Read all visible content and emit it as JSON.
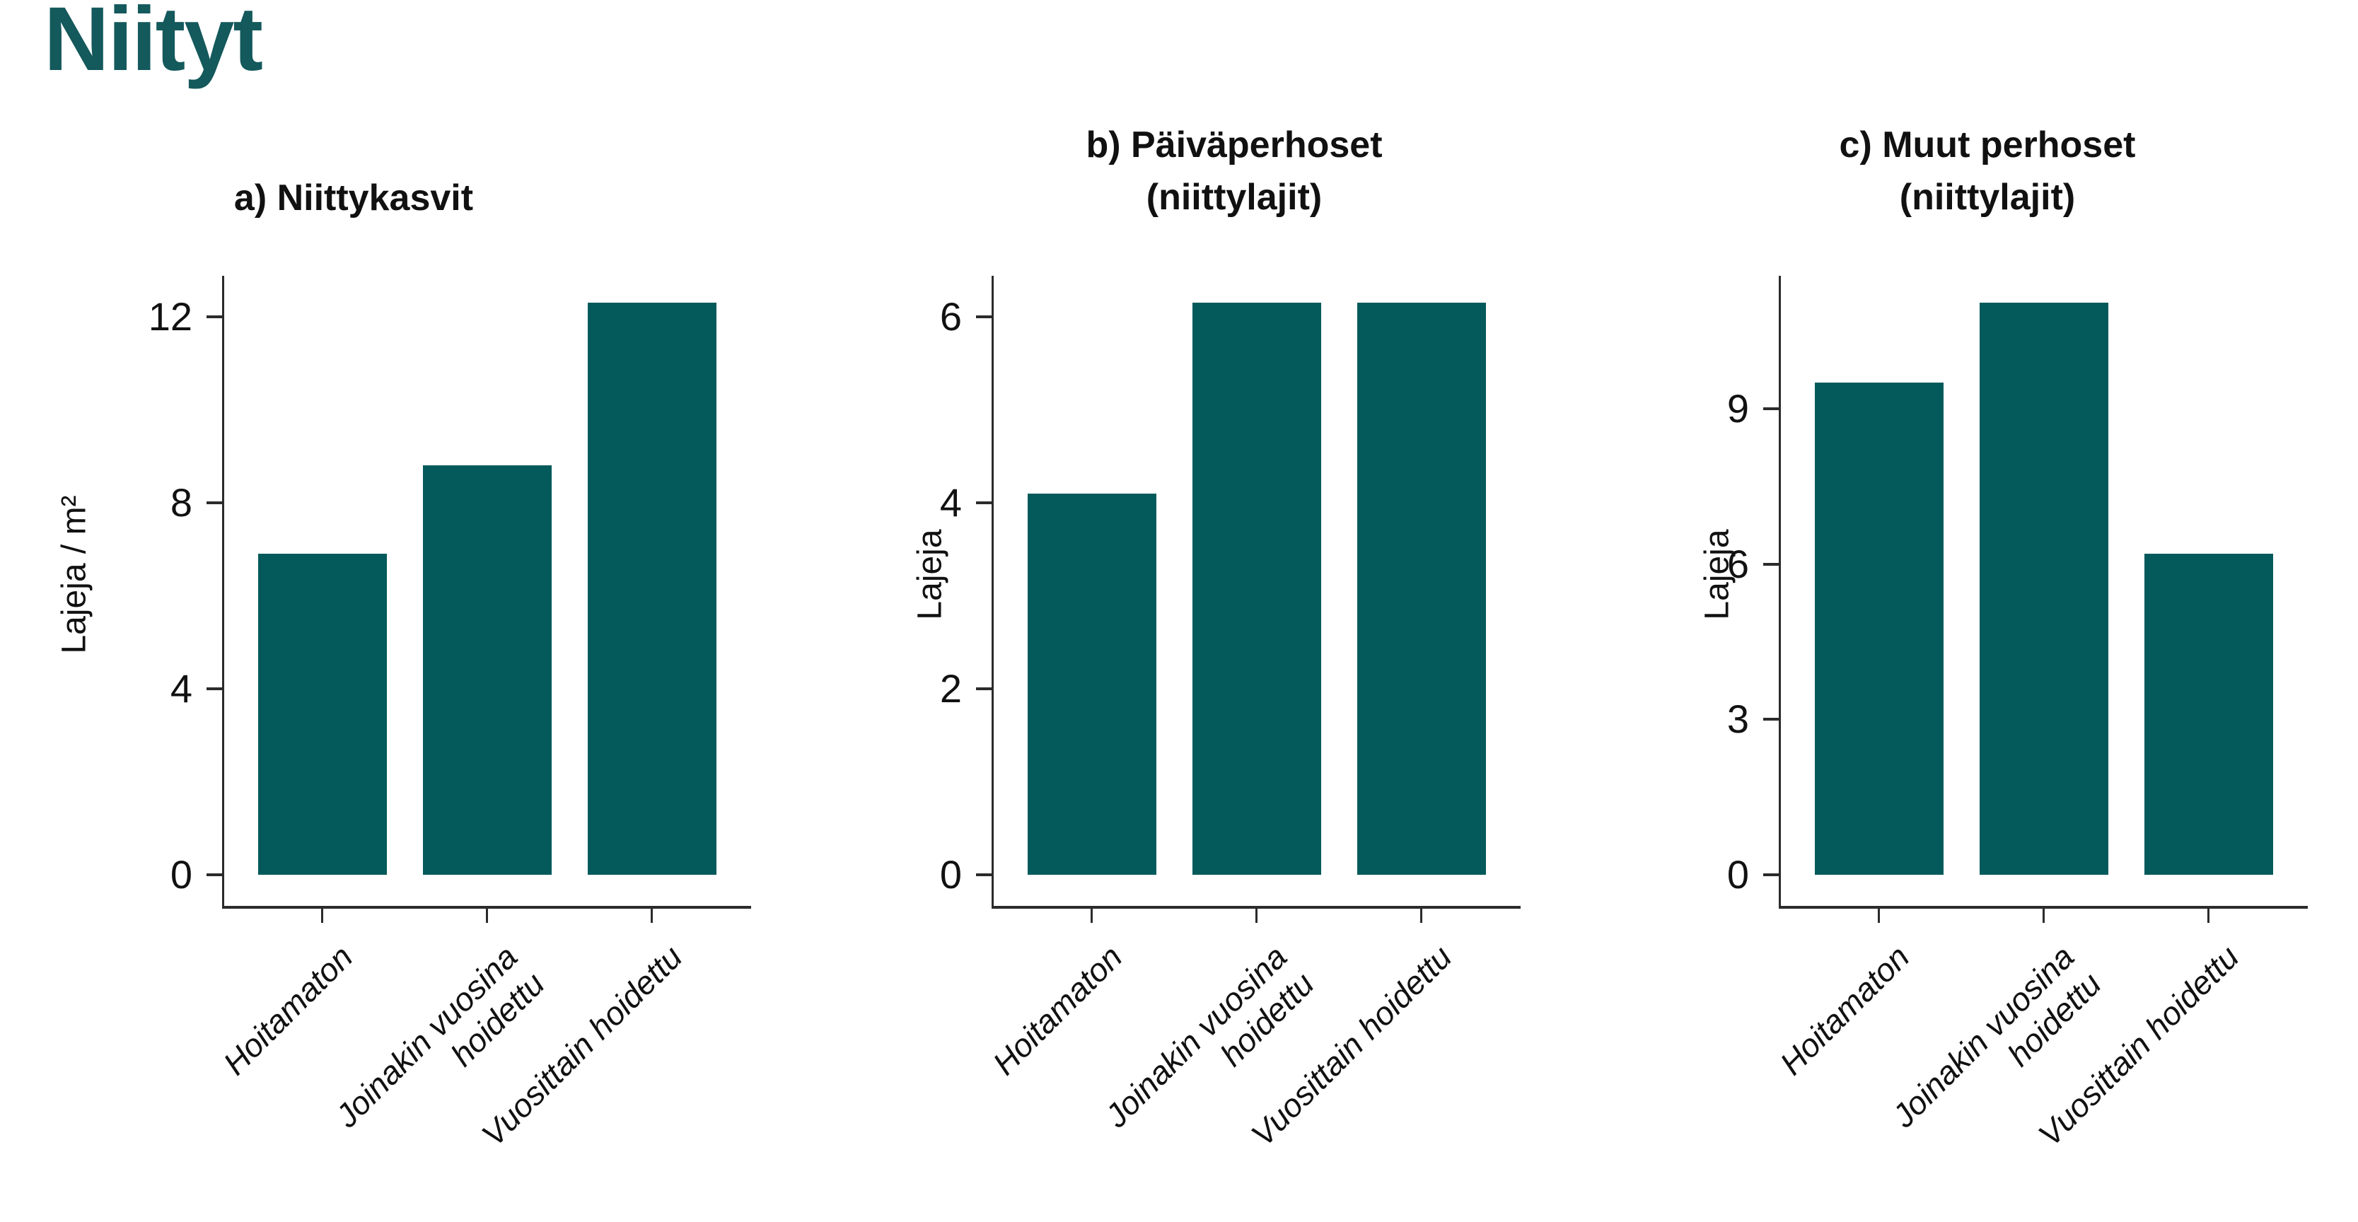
{
  "page": {
    "title": "Niityt",
    "title_color": "#14595c",
    "bar_color": "#045a5b",
    "axis_color": "#2b2b2b"
  },
  "chart_data": [
    {
      "type": "bar",
      "title_lines": [
        "a) Niittykasvit"
      ],
      "ylabel": "Lajeja / m²",
      "categories": [
        "Hoitamaton",
        "Joinakin vuosina hoidettu",
        "Vuosittain hoidettu"
      ],
      "category_label_lines": [
        [
          "Hoitamaton"
        ],
        [
          "Joinakin vuosina",
          "hoidettu"
        ],
        [
          "Vuosittain hoidettu"
        ]
      ],
      "values": [
        6.9,
        8.8,
        12.3
      ],
      "yticks": [
        0,
        4,
        8,
        12
      ],
      "ylim": [
        0,
        12.3
      ],
      "grid": false,
      "legend": false
    },
    {
      "type": "bar",
      "title_lines": [
        "b) Päiväperhoset",
        "(niittylajit)"
      ],
      "ylabel": "Lajeja",
      "categories": [
        "Hoitamaton",
        "Joinakin vuosina hoidettu",
        "Vuosittain hoidettu"
      ],
      "category_label_lines": [
        [
          "Hoitamaton"
        ],
        [
          "Joinakin vuosina",
          "hoidettu"
        ],
        [
          "Vuosittain hoidettu"
        ]
      ],
      "values": [
        4.1,
        6.15,
        6.15
      ],
      "yticks": [
        0,
        2,
        4,
        6
      ],
      "ylim": [
        0,
        6.15
      ],
      "grid": false,
      "legend": false
    },
    {
      "type": "bar",
      "title_lines": [
        "c) Muut perhoset",
        "(niittylajit)"
      ],
      "ylabel": "Lajeja",
      "categories": [
        "Hoitamaton",
        "Joinakin vuosina hoidettu",
        "Vuosittain hoidettu"
      ],
      "category_label_lines": [
        [
          "Hoitamaton"
        ],
        [
          "Joinakin vuosina",
          "hoidettu"
        ],
        [
          "Vuosittain hoidettu"
        ]
      ],
      "values": [
        9.5,
        11.05,
        6.2
      ],
      "yticks": [
        0,
        3,
        6,
        9
      ],
      "ylim": [
        0,
        11.05
      ],
      "grid": false,
      "legend": false
    }
  ]
}
